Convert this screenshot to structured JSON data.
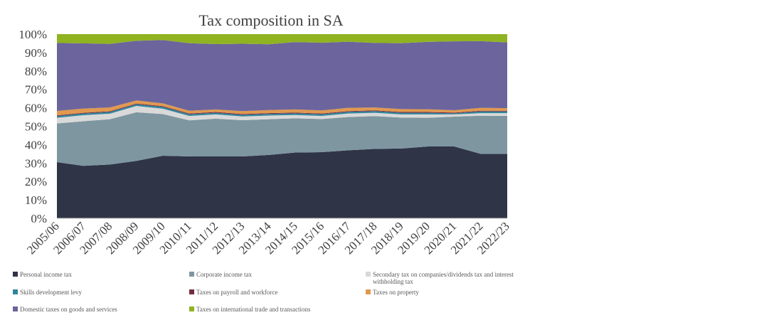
{
  "chart_data": {
    "type": "area",
    "stacked": true,
    "title": "Tax composition in SA",
    "xlabel": "",
    "ylabel": "",
    "ylim": [
      0,
      100
    ],
    "y_ticks": [
      "0%",
      "10%",
      "20%",
      "30%",
      "40%",
      "50%",
      "60%",
      "70%",
      "80%",
      "90%",
      "100%"
    ],
    "legend_position": "bottom",
    "grid": false,
    "categories": [
      "2005/06",
      "2006/07",
      "2007/08",
      "2008/09",
      "2009/10",
      "2010/11",
      "2011/12",
      "2012/13",
      "2013/14",
      "2014/15",
      "2015/16",
      "2016/17",
      "2017/18",
      "2018/19",
      "2019/20",
      "2020/21",
      "2021/22",
      "2022/23"
    ],
    "series": [
      {
        "name": "Personal income tax",
        "color": "#2f3447",
        "values": [
          30.5,
          28.5,
          29.2,
          31.2,
          34.0,
          33.6,
          33.6,
          33.6,
          34.4,
          35.7,
          35.9,
          36.9,
          37.7,
          37.9,
          39.0,
          39.0,
          35.0,
          35.0
        ]
      },
      {
        "name": "Corporate income tax",
        "color": "#7e96a0",
        "values": [
          21.0,
          24.2,
          24.6,
          26.4,
          22.6,
          19.6,
          20.5,
          19.7,
          19.4,
          18.6,
          18.0,
          18.1,
          17.8,
          16.8,
          15.6,
          16.2,
          20.7,
          20.6
        ]
      },
      {
        "name": "Secondary tax on companies/dividends tax and interest withholding tax",
        "color": "#d9d9d9",
        "values": [
          3.1,
          3.3,
          3.0,
          3.4,
          2.9,
          2.4,
          2.3,
          2.0,
          2.0,
          1.8,
          1.7,
          1.9,
          1.8,
          1.7,
          1.8,
          1.2,
          1.4,
          1.5
        ]
      },
      {
        "name": "Skills development levy",
        "color": "#31859c",
        "values": [
          0.9,
          0.9,
          0.9,
          0.9,
          1.0,
          0.9,
          0.9,
          0.9,
          0.9,
          0.9,
          0.9,
          0.9,
          0.9,
          0.9,
          0.9,
          0.6,
          0.9,
          0.9
        ]
      },
      {
        "name": "Taxes on payroll and workforce",
        "color": "#772c3e",
        "values": [
          0.4,
          0.4,
          0.4,
          0.4,
          0.4,
          0.4,
          0.4,
          0.4,
          0.4,
          0.4,
          0.4,
          0.4,
          0.4,
          0.4,
          0.4,
          0.4,
          0.4,
          0.4
        ]
      },
      {
        "name": "Taxes on property",
        "color": "#e0994f",
        "values": [
          2.4,
          2.3,
          2.1,
          1.7,
          1.5,
          1.5,
          1.4,
          1.6,
          1.7,
          1.7,
          1.7,
          1.8,
          1.6,
          1.6,
          1.5,
          1.3,
          1.6,
          1.4
        ]
      },
      {
        "name": "Domestic taxes on goods and services",
        "color": "#6c649c",
        "values": [
          36.9,
          35.4,
          34.5,
          32.4,
          34.4,
          36.7,
          35.5,
          36.6,
          35.7,
          36.6,
          36.7,
          35.9,
          35.0,
          35.8,
          36.6,
          37.4,
          36.2,
          35.7
        ]
      },
      {
        "name": "Taxes on international trade and transactions",
        "color": "#8fb321",
        "values": [
          4.8,
          5.0,
          5.3,
          3.6,
          3.2,
          4.9,
          5.4,
          5.2,
          5.5,
          4.3,
          4.7,
          4.1,
          4.8,
          4.9,
          4.2,
          3.9,
          3.8,
          4.5
        ]
      }
    ]
  }
}
